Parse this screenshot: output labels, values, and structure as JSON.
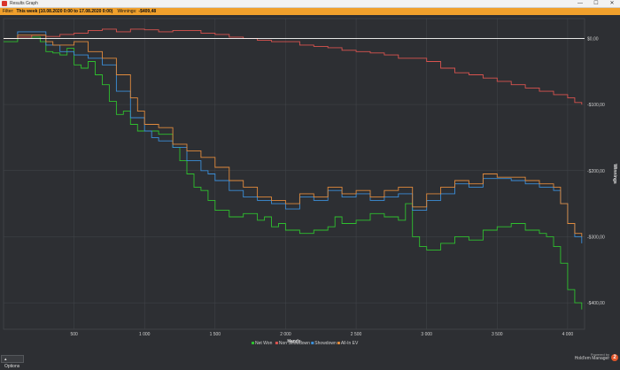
{
  "window": {
    "title": "Results Graph",
    "minimize_glyph": "—",
    "maximize_glyph": "☐",
    "close_glyph": "✕"
  },
  "filter": {
    "label": "Filter:",
    "value": "This week (10.08.2020 0:00 to 17.08.2020 0:00)",
    "winnings_label": "Winnings:",
    "winnings_value": "-$409,48"
  },
  "footer": {
    "options_label": "Options",
    "powered_by": "Powered by",
    "product": "Hold'em Manager",
    "badge": "2"
  },
  "colors": {
    "Net Won": "#2ec02e",
    "Non Showdown": "#d9534f",
    "Showdown": "#3b8ed8",
    "All-In EV": "#e08a3c"
  },
  "chart_data": {
    "type": "line",
    "xlabel": "Hands",
    "ylabel": "Winnings",
    "xlim": [
      0,
      4120
    ],
    "ylim": [
      -440,
      30
    ],
    "xticks": [
      500,
      1000,
      1500,
      2000,
      2500,
      3000,
      3500,
      4000
    ],
    "xtick_labels": [
      "500",
      "1 000",
      "1 500",
      "2 000",
      "2 500",
      "3 000",
      "3 500",
      "4 000"
    ],
    "yticks": [
      0,
      -100,
      -200,
      -300,
      -400
    ],
    "ytick_labels": [
      "$0,00",
      "-$100,00",
      "-$200,00",
      "-$300,00",
      "-$400,00"
    ],
    "grid": true,
    "legend_position": "bottom-center",
    "series": [
      {
        "name": "Net Won",
        "x": [
          0,
          100,
          200,
          260,
          300,
          350,
          400,
          450,
          500,
          550,
          600,
          650,
          700,
          750,
          800,
          850,
          900,
          950,
          1000,
          1100,
          1200,
          1250,
          1300,
          1350,
          1400,
          1450,
          1500,
          1600,
          1700,
          1800,
          1850,
          1900,
          1950,
          2000,
          2100,
          2200,
          2300,
          2350,
          2400,
          2500,
          2600,
          2700,
          2800,
          2850,
          2900,
          2950,
          3000,
          3100,
          3200,
          3300,
          3400,
          3500,
          3600,
          3700,
          3800,
          3850,
          3900,
          3950,
          4000,
          4050,
          4100
        ],
        "y": [
          -5,
          0,
          2,
          -5,
          -20,
          -22,
          -25,
          -15,
          -40,
          -45,
          -35,
          -55,
          -70,
          -95,
          -115,
          -110,
          -130,
          -140,
          -140,
          -145,
          -165,
          -185,
          -205,
          -225,
          -230,
          -245,
          -260,
          -270,
          -265,
          -275,
          -270,
          -285,
          -280,
          -290,
          -295,
          -290,
          -285,
          -270,
          -280,
          -275,
          -265,
          -270,
          -275,
          -250,
          -300,
          -315,
          -320,
          -310,
          -300,
          -305,
          -290,
          -285,
          -280,
          -290,
          -295,
          -300,
          -315,
          -340,
          -380,
          -400,
          -410
        ]
      },
      {
        "name": "Non Showdown",
        "x": [
          0,
          100,
          200,
          300,
          400,
          500,
          600,
          700,
          800,
          900,
          1000,
          1100,
          1200,
          1300,
          1400,
          1500,
          1600,
          1700,
          1800,
          1900,
          2000,
          2100,
          2200,
          2300,
          2400,
          2500,
          2600,
          2700,
          2800,
          2900,
          3000,
          3100,
          3200,
          3300,
          3400,
          3500,
          3600,
          3700,
          3800,
          3900,
          4000,
          4050,
          4100
        ],
        "y": [
          0,
          2,
          5,
          3,
          6,
          8,
          12,
          14,
          10,
          14,
          13,
          10,
          12,
          12,
          8,
          6,
          2,
          0,
          -3,
          -5,
          -5,
          -10,
          -12,
          -14,
          -18,
          -20,
          -22,
          -25,
          -30,
          -30,
          -35,
          -45,
          -52,
          -55,
          -60,
          -65,
          -70,
          -75,
          -80,
          -85,
          -90,
          -97,
          -100
        ]
      },
      {
        "name": "Showdown",
        "x": [
          0,
          100,
          200,
          300,
          400,
          500,
          600,
          700,
          800,
          900,
          1000,
          1050,
          1100,
          1200,
          1300,
          1400,
          1450,
          1500,
          1600,
          1700,
          1800,
          1900,
          2000,
          2100,
          2200,
          2300,
          2400,
          2500,
          2600,
          2700,
          2800,
          2900,
          3000,
          3100,
          3200,
          3300,
          3400,
          3500,
          3600,
          3700,
          3800,
          3900,
          3950,
          4000,
          4050,
          4100
        ],
        "y": [
          0,
          10,
          10,
          -10,
          -20,
          -25,
          -30,
          -40,
          -80,
          -120,
          -140,
          -150,
          -155,
          -165,
          -185,
          -200,
          -205,
          -215,
          -230,
          -240,
          -245,
          -250,
          -258,
          -240,
          -245,
          -230,
          -240,
          -235,
          -245,
          -240,
          -235,
          -260,
          -245,
          -235,
          -220,
          -225,
          -212,
          -212,
          -215,
          -220,
          -225,
          -230,
          -250,
          -280,
          -300,
          -310
        ]
      },
      {
        "name": "All-In EV",
        "x": [
          0,
          100,
          200,
          300,
          350,
          400,
          500,
          600,
          700,
          800,
          900,
          950,
          1000,
          1100,
          1200,
          1300,
          1400,
          1500,
          1600,
          1700,
          1800,
          1900,
          2000,
          2100,
          2200,
          2300,
          2400,
          2500,
          2600,
          2700,
          2800,
          2900,
          3000,
          3100,
          3200,
          3300,
          3400,
          3500,
          3600,
          3700,
          3800,
          3900,
          3950,
          4000,
          4050,
          4100
        ],
        "y": [
          0,
          5,
          5,
          -5,
          -10,
          -10,
          -5,
          -20,
          -30,
          -55,
          -90,
          -110,
          -130,
          -135,
          -160,
          -170,
          -180,
          -195,
          -215,
          -225,
          -240,
          -245,
          -250,
          -235,
          -240,
          -225,
          -235,
          -230,
          -240,
          -230,
          -225,
          -255,
          -235,
          -225,
          -215,
          -220,
          -205,
          -210,
          -210,
          -215,
          -220,
          -225,
          -250,
          -280,
          -295,
          -300
        ]
      }
    ]
  }
}
